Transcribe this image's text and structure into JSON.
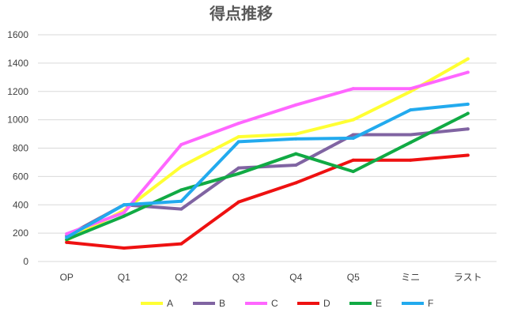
{
  "chart_data": {
    "type": "line",
    "title": "得点推移",
    "xlabel": "",
    "ylabel": "",
    "categories": [
      "OP",
      "Q1",
      "Q2",
      "Q3",
      "Q4",
      "Q5",
      "ミニ",
      "ラスト"
    ],
    "ylim": [
      0,
      1600
    ],
    "yticks": [
      0,
      200,
      400,
      600,
      800,
      1000,
      1200,
      1400,
      1600
    ],
    "grid": true,
    "legend": "bottom",
    "series": [
      {
        "name": "A",
        "color": "#ffff33",
        "values": [
          150,
          360,
          670,
          880,
          900,
          1000,
          1200,
          1430
        ]
      },
      {
        "name": "B",
        "color": "#8064a2",
        "values": [
          180,
          400,
          370,
          660,
          680,
          895,
          895,
          935
        ]
      },
      {
        "name": "C",
        "color": "#ff66ff",
        "values": [
          195,
          345,
          825,
          975,
          1105,
          1220,
          1220,
          1335
        ]
      },
      {
        "name": "D",
        "color": "#ee1111",
        "values": [
          135,
          95,
          125,
          420,
          555,
          715,
          715,
          750
        ]
      },
      {
        "name": "E",
        "color": "#11aa44",
        "values": [
          155,
          320,
          505,
          620,
          760,
          635,
          840,
          1045
        ]
      },
      {
        "name": "F",
        "color": "#22aaee",
        "values": [
          170,
          400,
          425,
          845,
          865,
          870,
          1070,
          1110
        ]
      }
    ]
  }
}
